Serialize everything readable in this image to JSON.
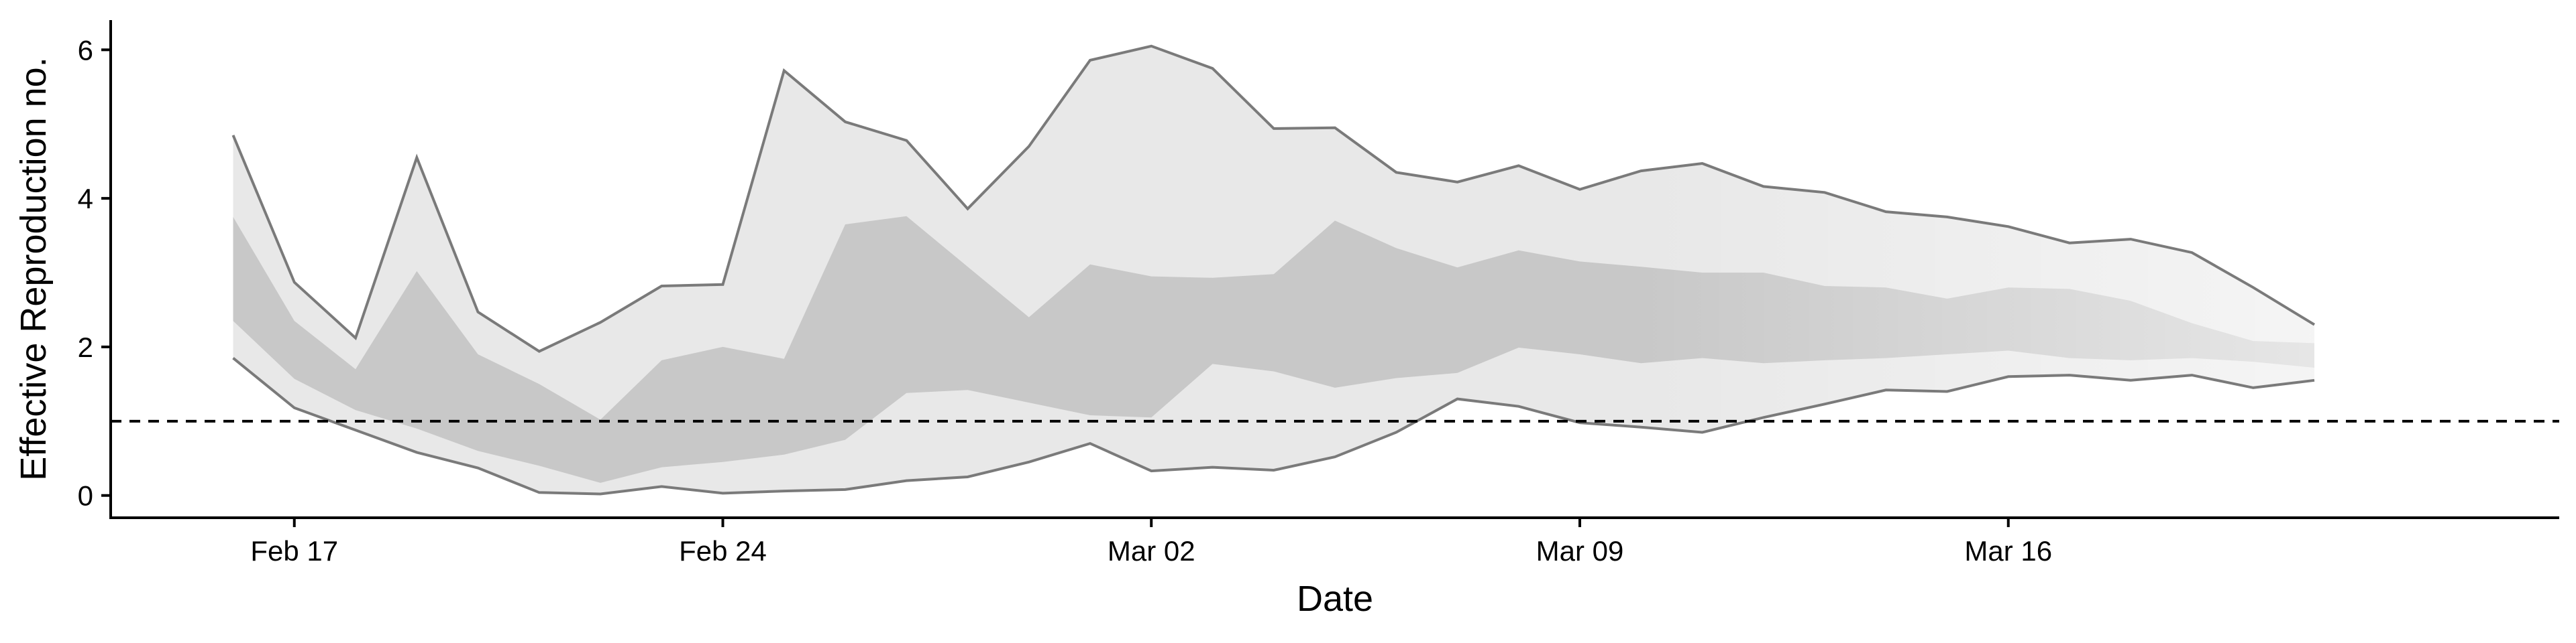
{
  "chart_data": {
    "type": "area",
    "xlabel": "Date",
    "ylabel": "Effective Reproduction no.",
    "x_tick_labels": [
      "Feb 17",
      "Feb 24",
      "Mar 02",
      "Mar 09",
      "Mar 16"
    ],
    "x_ticks": [
      "2020-02-17",
      "2020-02-24",
      "2020-03-02",
      "2020-03-09",
      "2020-03-16"
    ],
    "xlim": [
      "2020-02-14",
      "2020-03-25"
    ],
    "y_ticks": [
      0,
      2,
      4,
      6
    ],
    "ylim": [
      -0.3,
      6.4
    ],
    "reference_line": {
      "y": 1,
      "style": "dashed"
    },
    "x": [
      "2020-02-16",
      "2020-02-17",
      "2020-02-18",
      "2020-02-19",
      "2020-02-20",
      "2020-02-21",
      "2020-02-22",
      "2020-02-23",
      "2020-02-24",
      "2020-02-25",
      "2020-02-26",
      "2020-02-27",
      "2020-02-28",
      "2020-02-29",
      "2020-03-01",
      "2020-03-02",
      "2020-03-03",
      "2020-03-04",
      "2020-03-05",
      "2020-03-06",
      "2020-03-07",
      "2020-03-08",
      "2020-03-09",
      "2020-03-10",
      "2020-03-11",
      "2020-03-12",
      "2020-03-13",
      "2020-03-14",
      "2020-03-15",
      "2020-03-16",
      "2020-03-17",
      "2020-03-18",
      "2020-03-19",
      "2020-03-20",
      "2020-03-21"
    ],
    "series": [
      {
        "band": "outer",
        "color": "#e8e8e8",
        "lower": [
          1.85,
          1.18,
          0.88,
          0.58,
          0.37,
          0.04,
          0.02,
          0.12,
          0.03,
          0.06,
          0.08,
          0.2,
          0.25,
          0.45,
          0.7,
          0.33,
          0.38,
          0.34,
          0.52,
          0.85,
          1.3,
          1.2,
          0.98,
          0.92,
          0.85,
          1.05,
          1.23,
          1.42,
          1.4,
          1.6,
          1.62,
          1.55,
          1.62,
          1.45,
          1.55
        ],
        "upper": [
          4.85,
          2.87,
          2.12,
          4.55,
          2.47,
          1.94,
          2.33,
          2.82,
          2.84,
          5.72,
          5.03,
          4.78,
          3.86,
          4.7,
          5.86,
          6.05,
          5.75,
          4.94,
          4.95,
          4.35,
          4.22,
          4.44,
          4.12,
          4.37,
          4.47,
          4.16,
          4.08,
          3.82,
          3.75,
          3.62,
          3.4,
          3.45,
          3.27,
          2.8,
          2.3
        ]
      },
      {
        "band": "inner",
        "color": "#c8c8c8",
        "lower": [
          2.35,
          1.57,
          1.15,
          0.9,
          0.6,
          0.4,
          0.17,
          0.38,
          0.45,
          0.55,
          0.75,
          1.38,
          1.42,
          1.25,
          1.08,
          1.05,
          1.77,
          1.67,
          1.45,
          1.58,
          1.65,
          1.99,
          1.9,
          1.78,
          1.85,
          1.78,
          1.82,
          1.85,
          1.9,
          1.95,
          1.85,
          1.82,
          1.85,
          1.8,
          1.72
        ],
        "upper": [
          3.75,
          2.35,
          1.7,
          3.02,
          1.9,
          1.5,
          1.02,
          1.82,
          2.0,
          1.84,
          3.65,
          3.76,
          3.08,
          2.4,
          3.11,
          2.95,
          2.93,
          2.98,
          3.7,
          3.33,
          3.07,
          3.3,
          3.15,
          3.08,
          3.0,
          3.0,
          2.82,
          2.8,
          2.65,
          2.8,
          2.78,
          2.62,
          2.32,
          2.08,
          2.05
        ]
      }
    ]
  }
}
